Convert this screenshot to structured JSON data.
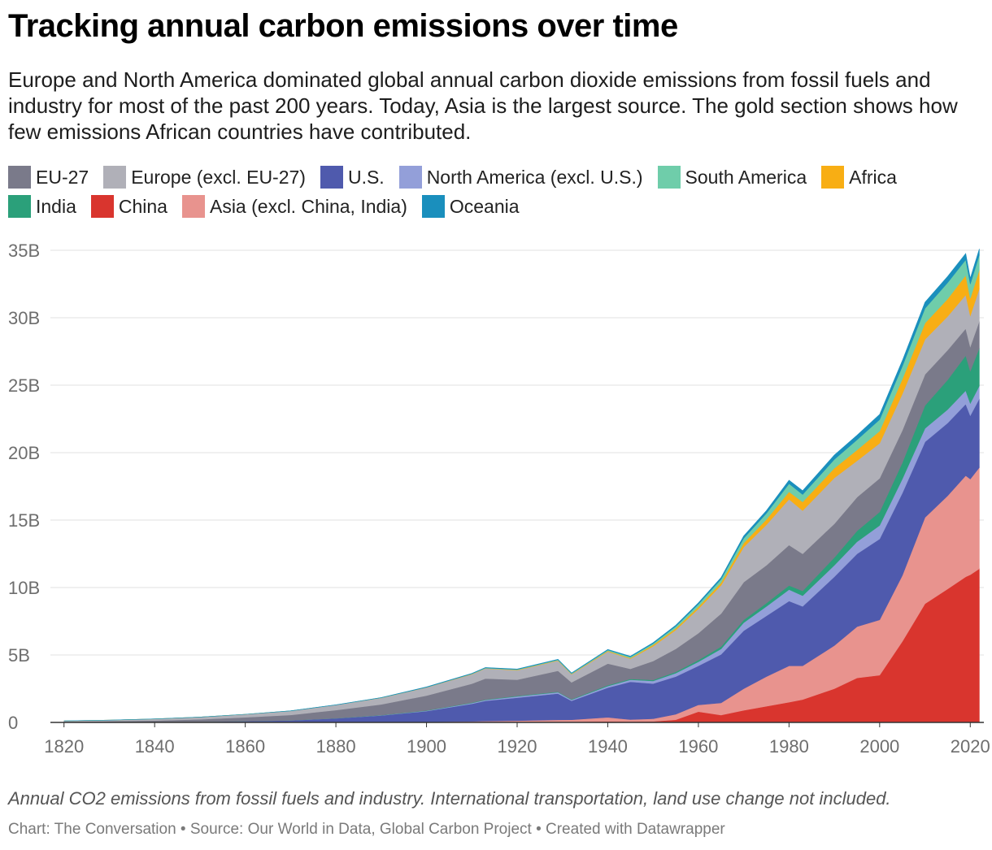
{
  "title": "Tracking annual carbon emissions over time",
  "subtitle": "Europe and North America dominated global annual carbon dioxide emissions from fossil fuels and industry for most of the past 200 years. Today, Asia is the largest source. The gold section shows how few emissions African countries have contributed.",
  "legend_rows": [
    [
      {
        "label": "EU-27",
        "color": "#7a7a8a"
      },
      {
        "label": "Europe (excl. EU-27)",
        "color": "#b0b0b8"
      },
      {
        "label": "U.S.",
        "color": "#4f5aad"
      },
      {
        "label": "North America (excl. U.S.)",
        "color": "#939fd9"
      },
      {
        "label": "South America",
        "color": "#6fcdaa"
      },
      {
        "label": "Africa",
        "color": "#f8ae14"
      }
    ],
    [
      {
        "label": "India",
        "color": "#2ba07a"
      },
      {
        "label": "China",
        "color": "#d9352e"
      },
      {
        "label": "Asia (excl. China, India)",
        "color": "#e8938e"
      },
      {
        "label": "Oceania",
        "color": "#1a8fbd"
      }
    ]
  ],
  "chart_data": {
    "type": "area",
    "stacked": true,
    "x": [
      1820,
      1830,
      1840,
      1850,
      1860,
      1870,
      1880,
      1890,
      1900,
      1910,
      1913,
      1920,
      1929,
      1932,
      1940,
      1945,
      1950,
      1955,
      1960,
      1965,
      1970,
      1975,
      1980,
      1983,
      1990,
      1995,
      2000,
      2005,
      2010,
      2015,
      2019,
      2020,
      2022
    ],
    "series": [
      {
        "name": "China",
        "values": [
          0,
          0,
          0,
          0,
          0,
          0,
          0,
          0,
          0.01,
          0.02,
          0.02,
          0.03,
          0.04,
          0.05,
          0.08,
          0.06,
          0.08,
          0.2,
          0.8,
          0.55,
          0.9,
          1.2,
          1.5,
          1.7,
          2.5,
          3.3,
          3.5,
          6.0,
          8.8,
          9.9,
          10.8,
          10.95,
          11.4
        ]
      },
      {
        "name": "Asia (excl. China, India)",
        "values": [
          0,
          0,
          0,
          0,
          0,
          0,
          0,
          0.01,
          0.03,
          0.06,
          0.08,
          0.1,
          0.15,
          0.15,
          0.3,
          0.15,
          0.2,
          0.4,
          0.5,
          0.9,
          1.6,
          2.2,
          2.7,
          2.5,
          3.2,
          3.8,
          4.1,
          4.9,
          6.4,
          6.9,
          7.5,
          7.1,
          7.5
        ]
      },
      {
        "name": "U.S.",
        "values": [
          0.003,
          0.01,
          0.02,
          0.05,
          0.1,
          0.15,
          0.3,
          0.5,
          0.8,
          1.3,
          1.5,
          1.7,
          1.95,
          1.4,
          2.2,
          2.8,
          2.6,
          2.8,
          2.9,
          3.6,
          4.3,
          4.5,
          4.8,
          4.4,
          5.1,
          5.4,
          6.0,
          6.1,
          5.6,
          5.4,
          5.3,
          4.7,
          5.1
        ]
      },
      {
        "name": "North America (excl. U.S.)",
        "values": [
          0,
          0,
          0,
          0,
          0.002,
          0.005,
          0.01,
          0.02,
          0.03,
          0.06,
          0.07,
          0.1,
          0.1,
          0.08,
          0.12,
          0.15,
          0.2,
          0.25,
          0.3,
          0.4,
          0.6,
          0.7,
          0.85,
          0.8,
          0.85,
          0.9,
          1.0,
          1.05,
          1.0,
          1.0,
          1.0,
          0.9,
          0.95
        ]
      },
      {
        "name": "India",
        "values": [
          0,
          0,
          0,
          0,
          0,
          0,
          0.005,
          0.01,
          0.02,
          0.03,
          0.03,
          0.04,
          0.04,
          0.04,
          0.06,
          0.06,
          0.07,
          0.1,
          0.12,
          0.17,
          0.2,
          0.25,
          0.3,
          0.35,
          0.58,
          0.8,
          1.0,
          1.2,
          1.7,
          2.2,
          2.6,
          2.4,
          2.8
        ]
      },
      {
        "name": "EU-27",
        "values": [
          0.05,
          0.08,
          0.12,
          0.18,
          0.28,
          0.4,
          0.6,
          0.8,
          1.1,
          1.4,
          1.55,
          1.2,
          1.55,
          1.25,
          1.6,
          0.75,
          1.4,
          1.7,
          2.0,
          2.45,
          2.8,
          2.8,
          3.0,
          2.75,
          2.5,
          2.5,
          2.5,
          2.4,
          2.3,
          2.2,
          2.0,
          1.8,
          2.0
        ]
      },
      {
        "name": "Europe (excl. EU-27)",
        "values": [
          0.06,
          0.08,
          0.12,
          0.17,
          0.22,
          0.3,
          0.38,
          0.48,
          0.6,
          0.7,
          0.75,
          0.7,
          0.75,
          0.6,
          0.9,
          0.75,
          1.1,
          1.4,
          1.8,
          2.1,
          2.6,
          3.0,
          3.4,
          3.2,
          3.4,
          2.7,
          2.6,
          2.7,
          2.6,
          2.5,
          2.5,
          2.3,
          2.4
        ]
      },
      {
        "name": "Africa",
        "values": [
          0,
          0,
          0,
          0,
          0,
          0,
          0,
          0.005,
          0.01,
          0.02,
          0.02,
          0.03,
          0.03,
          0.03,
          0.05,
          0.06,
          0.1,
          0.12,
          0.15,
          0.2,
          0.3,
          0.4,
          0.55,
          0.65,
          0.72,
          0.8,
          0.9,
          1.1,
          1.2,
          1.3,
          1.45,
          1.3,
          1.4
        ]
      },
      {
        "name": "South America",
        "values": [
          0,
          0,
          0,
          0,
          0,
          0,
          0.003,
          0.007,
          0.01,
          0.02,
          0.02,
          0.03,
          0.04,
          0.04,
          0.06,
          0.08,
          0.1,
          0.15,
          0.2,
          0.25,
          0.35,
          0.45,
          0.6,
          0.55,
          0.65,
          0.75,
          0.85,
          0.95,
          1.1,
          1.2,
          1.15,
          1.05,
          1.1
        ]
      },
      {
        "name": "Oceania",
        "values": [
          0,
          0,
          0,
          0,
          0.002,
          0.004,
          0.007,
          0.01,
          0.02,
          0.03,
          0.03,
          0.03,
          0.03,
          0.03,
          0.04,
          0.05,
          0.06,
          0.08,
          0.1,
          0.12,
          0.17,
          0.2,
          0.26,
          0.28,
          0.32,
          0.34,
          0.38,
          0.42,
          0.45,
          0.46,
          0.46,
          0.43,
          0.45
        ]
      }
    ],
    "x_ticks": [
      1820,
      1840,
      1860,
      1880,
      1900,
      1920,
      1940,
      1960,
      1980,
      2000,
      2020
    ],
    "y_ticks": [
      {
        "value": 0,
        "label": "0"
      },
      {
        "value": 5,
        "label": "5B"
      },
      {
        "value": 10,
        "label": "10B"
      },
      {
        "value": 15,
        "label": "15B"
      },
      {
        "value": 20,
        "label": "20B"
      },
      {
        "value": 25,
        "label": "25B"
      },
      {
        "value": 30,
        "label": "30B"
      },
      {
        "value": 35,
        "label": "35B"
      }
    ],
    "xlim": [
      1817,
      2023
    ],
    "ylim": [
      0,
      35
    ],
    "grid": true
  },
  "note": "Annual CO2 emissions from fossil fuels and industry. International transportation, land use change not included.",
  "credit": "Chart: The Conversation • Source: Our World in Data, Global Carbon Project • Created with Datawrapper"
}
